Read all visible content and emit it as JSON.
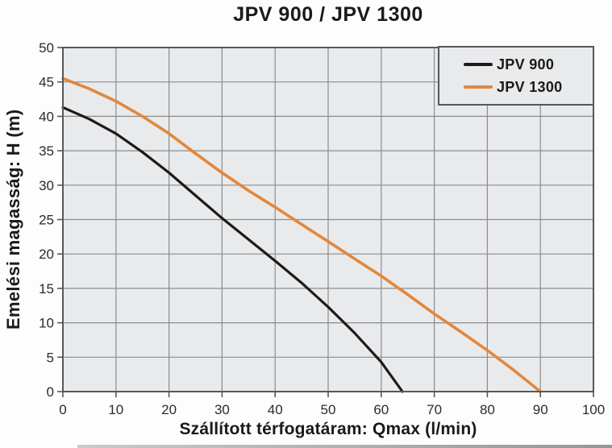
{
  "figure": {
    "title": "JPV 900 / JPV 1300",
    "x_axis_label": "Szállított térfogatáram: Qmax (l/min)",
    "y_axis_label": "Emelési magasság: H (m)"
  },
  "colors": {
    "background": "#fdfdfd",
    "plot_background": "#e9eaec",
    "grid": "#8a8c8e",
    "plot_border": "#55575a",
    "tick_text": "#2b2b2b",
    "title_text": "#1a1a1a",
    "jpv900_line": "#1b1b1b",
    "jpv1300_line": "#e2873b"
  },
  "chart_data": {
    "type": "line",
    "title": "JPV 900 / JPV 1300",
    "xlabel": "Szállított térfogatáram: Qmax (l/min)",
    "ylabel": "Emelési magasság: H (m)",
    "xlim": [
      0,
      100
    ],
    "ylim": [
      0,
      50
    ],
    "xticks": [
      0,
      10,
      20,
      30,
      40,
      50,
      60,
      70,
      80,
      90,
      100
    ],
    "yticks": [
      0,
      5,
      10,
      15,
      20,
      25,
      30,
      35,
      40,
      45,
      50
    ],
    "grid": true,
    "legend_position": "inside-top-right",
    "series": [
      {
        "name": "JPV 900",
        "color": "#1b1b1b",
        "points": [
          [
            0,
            41.3
          ],
          [
            5,
            39.6
          ],
          [
            10,
            37.5
          ],
          [
            15,
            34.8
          ],
          [
            20,
            31.8
          ],
          [
            25,
            28.5
          ],
          [
            30,
            25.2
          ],
          [
            35,
            22.1
          ],
          [
            40,
            19.0
          ],
          [
            45,
            15.8
          ],
          [
            50,
            12.3
          ],
          [
            55,
            8.5
          ],
          [
            60,
            4.3
          ],
          [
            64,
            0
          ]
        ]
      },
      {
        "name": "JPV 1300",
        "color": "#e2873b",
        "points": [
          [
            0,
            45.5
          ],
          [
            5,
            44.0
          ],
          [
            10,
            42.2
          ],
          [
            15,
            40.0
          ],
          [
            20,
            37.5
          ],
          [
            25,
            34.6
          ],
          [
            30,
            31.8
          ],
          [
            35,
            29.2
          ],
          [
            40,
            26.8
          ],
          [
            45,
            24.3
          ],
          [
            50,
            21.8
          ],
          [
            55,
            19.3
          ],
          [
            60,
            16.8
          ],
          [
            65,
            14.1
          ],
          [
            70,
            11.3
          ],
          [
            75,
            8.7
          ],
          [
            80,
            6.0
          ],
          [
            85,
            3.1
          ],
          [
            90,
            0
          ]
        ]
      }
    ]
  }
}
